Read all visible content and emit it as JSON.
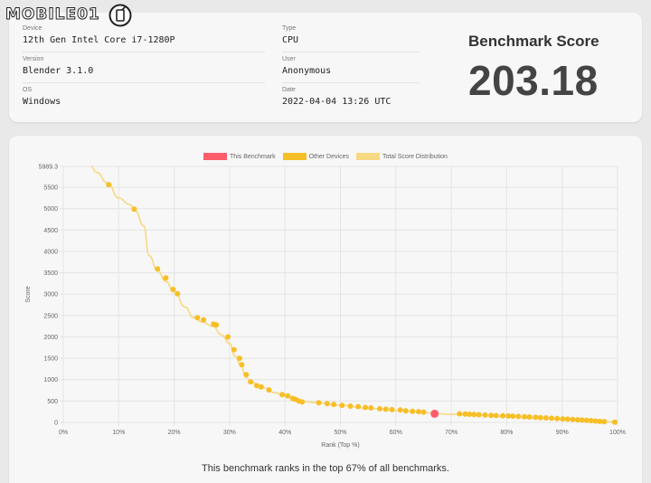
{
  "logo": {
    "text": "MOBILE01"
  },
  "device": {
    "fields": [
      {
        "label": "Device",
        "value": "12th Gen Intel Core i7-1280P"
      },
      {
        "label": "Version",
        "value": "Blender 3.1.0"
      },
      {
        "label": "OS",
        "value": "Windows"
      },
      {
        "label": "Type",
        "value": "CPU"
      },
      {
        "label": "User",
        "value": "Anonymous"
      },
      {
        "label": "Date",
        "value": "2022-04-04 13:26 UTC"
      }
    ]
  },
  "score": {
    "title": "Benchmark Score",
    "value": "203.18"
  },
  "legend": {
    "this": "This Benchmark",
    "other": "Other Devices",
    "dist": "Total Score Distribution"
  },
  "colors": {
    "this": "#ff5c6c",
    "other": "#f6bf26",
    "dist": "#f7d983",
    "grid": "#e4e4e4"
  },
  "caption": "This benchmark ranks in the top 67% of all benchmarks.",
  "chart_data": {
    "type": "scatter",
    "xlabel": "Rank (Top %)",
    "ylabel": "Score",
    "xlim": [
      0,
      100
    ],
    "ylim": [
      0,
      5989.3
    ],
    "x_ticks": [
      "0%",
      "10%",
      "20%",
      "30%",
      "40%",
      "50%",
      "60%",
      "70%",
      "80%",
      "90%",
      "100%"
    ],
    "y_ticks": [
      "0",
      "500",
      "1000",
      "1500",
      "2000",
      "2500",
      "3000",
      "3500",
      "4000",
      "4500",
      "5000",
      "5500",
      "5989.3"
    ],
    "y_tick_values": [
      0,
      500,
      1000,
      1500,
      2000,
      2500,
      3000,
      3500,
      4000,
      4500,
      5000,
      5500,
      5989.3
    ],
    "distribution": [
      [
        5,
        5989.3
      ],
      [
        6,
        5850
      ],
      [
        8,
        5600
      ],
      [
        10,
        5250
      ],
      [
        12,
        5100
      ],
      [
        13,
        4950
      ],
      [
        14.5,
        4600
      ],
      [
        15.5,
        3900
      ],
      [
        17,
        3550
      ],
      [
        18.5,
        3300
      ],
      [
        20,
        3050
      ],
      [
        22,
        2700
      ],
      [
        23.5,
        2450
      ],
      [
        25,
        2350
      ],
      [
        27,
        2250
      ],
      [
        28.5,
        2050
      ],
      [
        30,
        1850
      ],
      [
        31,
        1550
      ],
      [
        32,
        1350
      ],
      [
        33,
        1050
      ],
      [
        34,
        930
      ],
      [
        36,
        820
      ],
      [
        38,
        700
      ],
      [
        40,
        620
      ],
      [
        42,
        520
      ],
      [
        45,
        470
      ],
      [
        50,
        400
      ],
      [
        55,
        330
      ],
      [
        60,
        280
      ],
      [
        65,
        230
      ],
      [
        70,
        190
      ],
      [
        75,
        160
      ],
      [
        80,
        130
      ],
      [
        85,
        100
      ],
      [
        90,
        70
      ],
      [
        95,
        40
      ],
      [
        100,
        10
      ]
    ],
    "other_devices": [
      [
        8.2,
        5560
      ],
      [
        12.8,
        4990
      ],
      [
        17,
        3590
      ],
      [
        18.5,
        3380
      ],
      [
        19.8,
        3110
      ],
      [
        20.6,
        3010
      ],
      [
        24.2,
        2450
      ],
      [
        25.3,
        2400
      ],
      [
        27.1,
        2300
      ],
      [
        27.6,
        2280
      ],
      [
        29.7,
        2000
      ],
      [
        30.8,
        1700
      ],
      [
        31.8,
        1500
      ],
      [
        32.2,
        1350
      ],
      [
        33,
        1120
      ],
      [
        33.8,
        950
      ],
      [
        34.9,
        860
      ],
      [
        35.7,
        830
      ],
      [
        37.1,
        760
      ],
      [
        39.5,
        650
      ],
      [
        40.5,
        620
      ],
      [
        41.4,
        560
      ],
      [
        41.9,
        540
      ],
      [
        42.5,
        500
      ],
      [
        43.1,
        480
      ],
      [
        46.1,
        460
      ],
      [
        47.6,
        440
      ],
      [
        48.8,
        420
      ],
      [
        50.3,
        400
      ],
      [
        51.8,
        380
      ],
      [
        53.2,
        370
      ],
      [
        54.5,
        350
      ],
      [
        55.5,
        340
      ],
      [
        57.1,
        320
      ],
      [
        58.2,
        310
      ],
      [
        59.3,
        300
      ],
      [
        60.8,
        290
      ],
      [
        61.8,
        270
      ],
      [
        63,
        260
      ],
      [
        64.1,
        250
      ],
      [
        65,
        240
      ],
      [
        71.5,
        200
      ],
      [
        72.5,
        195
      ],
      [
        73.3,
        190
      ],
      [
        74.1,
        185
      ],
      [
        75,
        180
      ],
      [
        76.1,
        172
      ],
      [
        77.2,
        165
      ],
      [
        78.1,
        160
      ],
      [
        79.3,
        155
      ],
      [
        80.3,
        150
      ],
      [
        81.1,
        145
      ],
      [
        82.1,
        140
      ],
      [
        83.2,
        132
      ],
      [
        84.1,
        126
      ],
      [
        85.2,
        120
      ],
      [
        86.1,
        112
      ],
      [
        87.1,
        105
      ],
      [
        88.1,
        98
      ],
      [
        89.1,
        90
      ],
      [
        90.1,
        82
      ],
      [
        91,
        76
      ],
      [
        91.9,
        70
      ],
      [
        92.8,
        62
      ],
      [
        93.6,
        55
      ],
      [
        94.4,
        48
      ],
      [
        95.2,
        40
      ],
      [
        96,
        32
      ],
      [
        96.8,
        25
      ],
      [
        97.6,
        18
      ],
      [
        99.5,
        5
      ]
    ],
    "this_benchmark": [
      [
        67,
        203.18
      ]
    ],
    "grid": true,
    "legend_position": "top-center"
  }
}
